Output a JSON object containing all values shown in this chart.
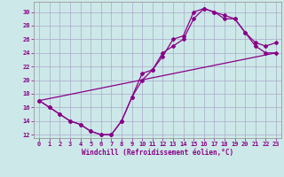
{
  "xlabel": "Windchill (Refroidissement éolien,°C)",
  "bg_color": "#cde8e8",
  "grid_color": "#aaaacc",
  "line_color": "#880088",
  "xlim": [
    -0.5,
    23.5
  ],
  "ylim": [
    11.5,
    31.5
  ],
  "xticks": [
    0,
    1,
    2,
    3,
    4,
    5,
    6,
    7,
    8,
    9,
    10,
    11,
    12,
    13,
    14,
    15,
    16,
    17,
    18,
    19,
    20,
    21,
    22,
    23
  ],
  "yticks": [
    12,
    14,
    16,
    18,
    20,
    22,
    24,
    26,
    28,
    30
  ],
  "line1_x": [
    0,
    1,
    2,
    3,
    4,
    5,
    6,
    7,
    8,
    9,
    10,
    11,
    12,
    13,
    14,
    15,
    16,
    17,
    18,
    19,
    20,
    21,
    22,
    23
  ],
  "line1_y": [
    17,
    16,
    15,
    14,
    13.5,
    12.5,
    12,
    12,
    14,
    17.5,
    21,
    21.5,
    24,
    25,
    26,
    29,
    30.5,
    30,
    29,
    29,
    27,
    25,
    24,
    24
  ],
  "line2_x": [
    0,
    1,
    2,
    3,
    4,
    5,
    6,
    7,
    8,
    9,
    10,
    11,
    12,
    13,
    14,
    15,
    16,
    17,
    18,
    19,
    20,
    21,
    22,
    23
  ],
  "line2_y": [
    17,
    16,
    15,
    14,
    13.5,
    12.5,
    12,
    12,
    14,
    17.5,
    20,
    21.5,
    23.5,
    26,
    26.5,
    30,
    30.5,
    30,
    29.5,
    29,
    27,
    25.5,
    25,
    25.5
  ],
  "line3_x": [
    0,
    23
  ],
  "line3_y": [
    17,
    24
  ],
  "marker": "D",
  "markersize": 2,
  "linewidth": 0.9,
  "tick_fontsize": 5,
  "xlabel_fontsize": 5.5
}
